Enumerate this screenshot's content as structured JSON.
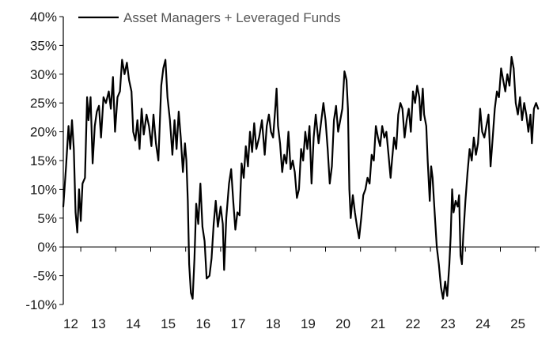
{
  "chart_data": {
    "type": "line",
    "title": "",
    "xlabel": "",
    "ylabel": "",
    "x_unit": "year (20xx)",
    "xlim": [
      12.0,
      25.6
    ],
    "ylim": [
      -10,
      40
    ],
    "yticks": [
      -10,
      -5,
      0,
      5,
      10,
      15,
      20,
      25,
      30,
      35,
      40
    ],
    "ytick_labels": [
      "-10%",
      "-5%",
      "0%",
      "5%",
      "10%",
      "15%",
      "20%",
      "25%",
      "30%",
      "35%",
      "40%"
    ],
    "xtick_labels": [
      "12",
      "13",
      "14",
      "15",
      "16",
      "17",
      "18",
      "19",
      "20",
      "21",
      "22",
      "23",
      "24",
      "25"
    ],
    "legend": {
      "position": "top-left",
      "entries": [
        "Asset Managers + Leveraged Funds"
      ]
    },
    "colors": {
      "line": "#000000",
      "axis": "#000000",
      "legend_text": "#555555"
    },
    "series": [
      {
        "name": "Asset Managers + Leveraged Funds",
        "points": [
          [
            12.0,
            7
          ],
          [
            12.08,
            14
          ],
          [
            12.15,
            21
          ],
          [
            12.2,
            17
          ],
          [
            12.25,
            22
          ],
          [
            12.3,
            17
          ],
          [
            12.35,
            6
          ],
          [
            12.4,
            2.5
          ],
          [
            12.45,
            10
          ],
          [
            12.5,
            4.5
          ],
          [
            12.55,
            11
          ],
          [
            12.62,
            12
          ],
          [
            12.68,
            26
          ],
          [
            12.72,
            22
          ],
          [
            12.78,
            26
          ],
          [
            12.84,
            14.5
          ],
          [
            12.9,
            21
          ],
          [
            12.96,
            23.5
          ],
          [
            13.02,
            24.5
          ],
          [
            13.08,
            19
          ],
          [
            13.15,
            26
          ],
          [
            13.22,
            25
          ],
          [
            13.3,
            27
          ],
          [
            13.36,
            24
          ],
          [
            13.42,
            29.5
          ],
          [
            13.48,
            20
          ],
          [
            13.55,
            26
          ],
          [
            13.62,
            27
          ],
          [
            13.68,
            32.5
          ],
          [
            13.75,
            30
          ],
          [
            13.82,
            32
          ],
          [
            13.88,
            29
          ],
          [
            13.95,
            27
          ],
          [
            14.0,
            20
          ],
          [
            14.06,
            18.5
          ],
          [
            14.12,
            22
          ],
          [
            14.18,
            17
          ],
          [
            14.24,
            24
          ],
          [
            14.3,
            19.5
          ],
          [
            14.38,
            23
          ],
          [
            14.45,
            21
          ],
          [
            14.52,
            17.5
          ],
          [
            14.58,
            23
          ],
          [
            14.65,
            18
          ],
          [
            14.72,
            15
          ],
          [
            14.8,
            28
          ],
          [
            14.86,
            31
          ],
          [
            14.92,
            32.5
          ],
          [
            14.98,
            26
          ],
          [
            15.05,
            22
          ],
          [
            15.12,
            16
          ],
          [
            15.18,
            22
          ],
          [
            15.24,
            17
          ],
          [
            15.3,
            23.5
          ],
          [
            15.36,
            19
          ],
          [
            15.42,
            13
          ],
          [
            15.48,
            18
          ],
          [
            15.52,
            15
          ],
          [
            15.56,
            8
          ],
          [
            15.6,
            -3
          ],
          [
            15.65,
            -8
          ],
          [
            15.7,
            -9
          ],
          [
            15.75,
            -2
          ],
          [
            15.8,
            7.5
          ],
          [
            15.86,
            4
          ],
          [
            15.92,
            11
          ],
          [
            15.98,
            3.5
          ],
          [
            16.04,
            1
          ],
          [
            16.1,
            -5.5
          ],
          [
            16.18,
            -5
          ],
          [
            16.24,
            -2
          ],
          [
            16.3,
            4
          ],
          [
            16.36,
            8
          ],
          [
            16.42,
            3.5
          ],
          [
            16.5,
            7
          ],
          [
            16.56,
            4
          ],
          [
            16.6,
            -4
          ],
          [
            16.66,
            5
          ],
          [
            16.74,
            11
          ],
          [
            16.8,
            13.5
          ],
          [
            16.86,
            8
          ],
          [
            16.92,
            3
          ],
          [
            16.98,
            6
          ],
          [
            17.04,
            5.5
          ],
          [
            17.1,
            14.5
          ],
          [
            17.16,
            12
          ],
          [
            17.22,
            17.5
          ],
          [
            17.28,
            14
          ],
          [
            17.34,
            20
          ],
          [
            17.4,
            16.5
          ],
          [
            17.46,
            21.5
          ],
          [
            17.52,
            17
          ],
          [
            17.6,
            19
          ],
          [
            17.68,
            22
          ],
          [
            17.76,
            16
          ],
          [
            17.82,
            21
          ],
          [
            17.88,
            23
          ],
          [
            17.94,
            20
          ],
          [
            18.0,
            19
          ],
          [
            18.06,
            24
          ],
          [
            18.1,
            27.5
          ],
          [
            18.14,
            21
          ],
          [
            18.2,
            18
          ],
          [
            18.26,
            13
          ],
          [
            18.32,
            16
          ],
          [
            18.38,
            14.5
          ],
          [
            18.44,
            20
          ],
          [
            18.5,
            13.5
          ],
          [
            18.56,
            15
          ],
          [
            18.62,
            13
          ],
          [
            18.68,
            8.5
          ],
          [
            18.74,
            10
          ],
          [
            18.8,
            17
          ],
          [
            18.86,
            15
          ],
          [
            18.92,
            20
          ],
          [
            18.98,
            17
          ],
          [
            19.04,
            21
          ],
          [
            19.1,
            11
          ],
          [
            19.16,
            19
          ],
          [
            19.22,
            23
          ],
          [
            19.3,
            18
          ],
          [
            19.36,
            21
          ],
          [
            19.44,
            25
          ],
          [
            19.5,
            22
          ],
          [
            19.56,
            17
          ],
          [
            19.62,
            11
          ],
          [
            19.68,
            14
          ],
          [
            19.74,
            22
          ],
          [
            19.8,
            24.5
          ],
          [
            19.86,
            20
          ],
          [
            19.92,
            22
          ],
          [
            19.98,
            24
          ],
          [
            20.04,
            30.5
          ],
          [
            20.1,
            29
          ],
          [
            20.14,
            24
          ],
          [
            20.18,
            10
          ],
          [
            20.22,
            5
          ],
          [
            20.28,
            9
          ],
          [
            20.34,
            6
          ],
          [
            20.4,
            3.5
          ],
          [
            20.46,
            1.5
          ],
          [
            20.52,
            5
          ],
          [
            20.58,
            9
          ],
          [
            20.64,
            10
          ],
          [
            20.7,
            12
          ],
          [
            20.76,
            11
          ],
          [
            20.82,
            16
          ],
          [
            20.88,
            15
          ],
          [
            20.94,
            21
          ],
          [
            21.0,
            19
          ],
          [
            21.06,
            17.5
          ],
          [
            21.12,
            21
          ],
          [
            21.18,
            19
          ],
          [
            21.24,
            20
          ],
          [
            21.3,
            16
          ],
          [
            21.36,
            12
          ],
          [
            21.4,
            15
          ],
          [
            21.46,
            19
          ],
          [
            21.52,
            17
          ],
          [
            21.58,
            23
          ],
          [
            21.64,
            25
          ],
          [
            21.7,
            24
          ],
          [
            21.76,
            19
          ],
          [
            21.82,
            22
          ],
          [
            21.88,
            24
          ],
          [
            21.94,
            20
          ],
          [
            22.0,
            27
          ],
          [
            22.06,
            25
          ],
          [
            22.12,
            28
          ],
          [
            22.18,
            26
          ],
          [
            22.22,
            22
          ],
          [
            22.28,
            27.5
          ],
          [
            22.32,
            23
          ],
          [
            22.38,
            21
          ],
          [
            22.42,
            15
          ],
          [
            22.48,
            8
          ],
          [
            22.52,
            14
          ],
          [
            22.56,
            12
          ],
          [
            22.62,
            6
          ],
          [
            22.68,
            0
          ],
          [
            22.74,
            -3
          ],
          [
            22.8,
            -7
          ],
          [
            22.86,
            -9
          ],
          [
            22.92,
            -6
          ],
          [
            22.98,
            -8.5
          ],
          [
            23.04,
            -3
          ],
          [
            23.08,
            2
          ],
          [
            23.12,
            10
          ],
          [
            23.16,
            6
          ],
          [
            23.22,
            8
          ],
          [
            23.28,
            7
          ],
          [
            23.32,
            9
          ],
          [
            23.36,
            -1.5
          ],
          [
            23.4,
            -3
          ],
          [
            23.44,
            2
          ],
          [
            23.5,
            8
          ],
          [
            23.56,
            13
          ],
          [
            23.62,
            17
          ],
          [
            23.68,
            15
          ],
          [
            23.74,
            19
          ],
          [
            23.8,
            16
          ],
          [
            23.86,
            18
          ],
          [
            23.92,
            24
          ],
          [
            23.98,
            20
          ],
          [
            24.04,
            19
          ],
          [
            24.1,
            21
          ],
          [
            24.16,
            23
          ],
          [
            24.22,
            14
          ],
          [
            24.28,
            19
          ],
          [
            24.34,
            24
          ],
          [
            24.4,
            27
          ],
          [
            24.46,
            26
          ],
          [
            24.52,
            31
          ],
          [
            24.58,
            29
          ],
          [
            24.64,
            27
          ],
          [
            24.7,
            30
          ],
          [
            24.76,
            28
          ],
          [
            24.82,
            33
          ],
          [
            24.88,
            31
          ],
          [
            24.94,
            25
          ],
          [
            25.0,
            23
          ],
          [
            25.06,
            26
          ],
          [
            25.12,
            22
          ],
          [
            25.18,
            25
          ],
          [
            25.24,
            23
          ],
          [
            25.3,
            20
          ],
          [
            25.36,
            23
          ],
          [
            25.4,
            18
          ],
          [
            25.46,
            24
          ],
          [
            25.52,
            25
          ],
          [
            25.58,
            24
          ]
        ]
      }
    ]
  }
}
